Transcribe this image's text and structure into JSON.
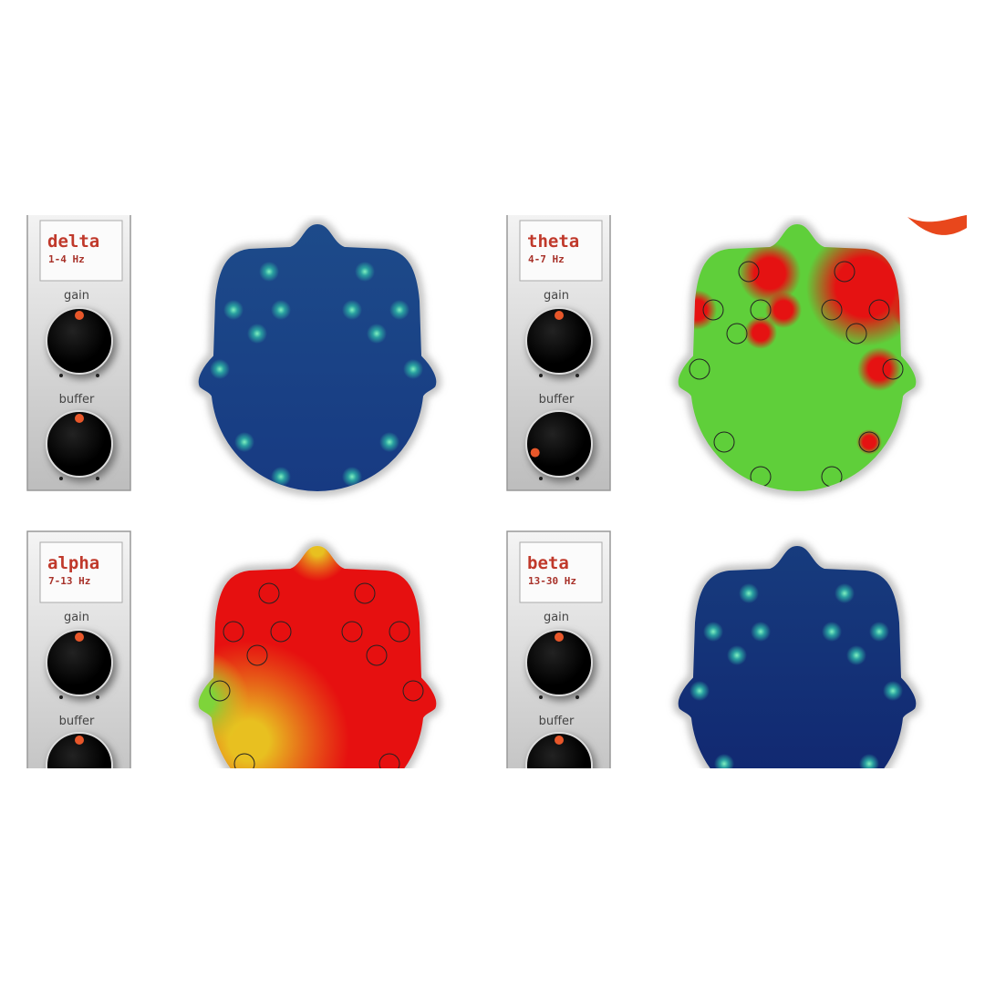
{
  "panels": [
    {
      "band": "delta",
      "range": "1-4 Hz",
      "gain_label": "gain",
      "buffer_label": "buffer"
    },
    {
      "band": "theta",
      "range": "4-7 Hz",
      "gain_label": "gain",
      "buffer_label": "buffer"
    },
    {
      "band": "alpha",
      "range": "7-13 Hz",
      "gain_label": "gain",
      "buffer_label": "buffer"
    },
    {
      "band": "beta",
      "range": "13-30 Hz",
      "gain_label": "gain",
      "buffer_label": "buffer"
    }
  ]
}
